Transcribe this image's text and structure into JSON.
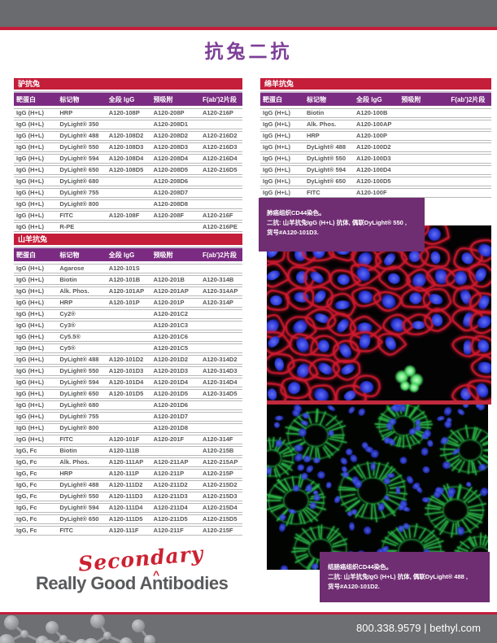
{
  "page_title": "抗兔二抗",
  "tables": [
    {
      "title": "驴抗兔",
      "headers": [
        "靶蛋白",
        "标记物",
        "全段 IgG",
        "预吸附",
        "F(ab')2片段"
      ],
      "rows": [
        [
          "IgG (H+L)",
          "HRP",
          "A120-108P",
          "A120-208P",
          "A120-216P"
        ],
        [
          "IgG (H+L)",
          "DyLight® 350",
          "",
          "A120-208D1",
          ""
        ],
        [
          "IgG (H+L)",
          "DyLight® 488",
          "A120-108D2",
          "A120-208D2",
          "A120-216D2"
        ],
        [
          "IgG (H+L)",
          "DyLight® 550",
          "A120-108D3",
          "A120-208D3",
          "A120-216D3"
        ],
        [
          "IgG (H+L)",
          "DyLight® 594",
          "A120-108D4",
          "A120-208D4",
          "A120-216D4"
        ],
        [
          "IgG (H+L)",
          "DyLight® 650",
          "A120-108D5",
          "A120-208D5",
          "A120-216D5"
        ],
        [
          "IgG (H+L)",
          "DyLight® 680",
          "",
          "A120-208D6",
          ""
        ],
        [
          "IgG (H+L)",
          "DyLight® 755",
          "",
          "A120-208D7",
          ""
        ],
        [
          "IgG (H+L)",
          "DyLight® 800",
          "",
          "A120-208D8",
          ""
        ],
        [
          "IgG (H+L)",
          "FITC",
          "A120-108F",
          "A120-208F",
          "A120-216F"
        ],
        [
          "IgG (H+L)",
          "R-PE",
          "",
          "",
          "A120-216PE"
        ]
      ]
    },
    {
      "title": "山羊抗兔",
      "headers": [
        "靶蛋白",
        "标记物",
        "全段 IgG",
        "预吸附",
        "F(ab')2片段"
      ],
      "rows": [
        [
          "IgG (H+L)",
          "Agarose",
          "A120-101S",
          "",
          ""
        ],
        [
          "IgG (H+L)",
          "Biotin",
          "A120-101B",
          "A120-201B",
          "A120-314B"
        ],
        [
          "IgG (H+L)",
          "Alk. Phos.",
          "A120-101AP",
          "A120-201AP",
          "A120-314AP"
        ],
        [
          "IgG (H+L)",
          "HRP",
          "A120-101P",
          "A120-201P",
          "A120-314P"
        ],
        [
          "IgG (H+L)",
          "Cy2®",
          "",
          "A120-201C2",
          ""
        ],
        [
          "IgG (H+L)",
          "Cy3®",
          "",
          "A120-201C3",
          ""
        ],
        [
          "IgG (H+L)",
          "Cy5.5®",
          "",
          "A120-201C6",
          ""
        ],
        [
          "IgG (H+L)",
          "Cy5®",
          "",
          "A120-201C5",
          ""
        ],
        [
          "IgG (H+L)",
          "DyLight® 488",
          "A120-101D2",
          "A120-201D2",
          "A120-314D2"
        ],
        [
          "IgG (H+L)",
          "DyLight® 550",
          "A120-101D3",
          "A120-201D3",
          "A120-314D3"
        ],
        [
          "IgG (H+L)",
          "DyLight® 594",
          "A120-101D4",
          "A120-201D4",
          "A120-314D4"
        ],
        [
          "IgG (H+L)",
          "DyLight® 650",
          "A120-101D5",
          "A120-201D5",
          "A120-314D5"
        ],
        [
          "IgG (H+L)",
          "DyLight® 680",
          "",
          "A120-201D6",
          ""
        ],
        [
          "IgG (H+L)",
          "DyLight® 755",
          "",
          "A120-201D7",
          ""
        ],
        [
          "IgG (H+L)",
          "DyLight® 800",
          "",
          "A120-201D8",
          ""
        ],
        [
          "IgG (H+L)",
          "FITC",
          "A120-101F",
          "A120-201F",
          "A120-314F"
        ],
        [
          "IgG, Fc",
          "Biotin",
          "A120-111B",
          "",
          "A120-215B"
        ],
        [
          "IgG, Fc",
          "Alk. Phos.",
          "A120-111AP",
          "A120-211AP",
          "A120-215AP"
        ],
        [
          "IgG, Fc",
          "HRP",
          "A120-111P",
          "A120-211P",
          "A120-215P"
        ],
        [
          "IgG, Fc",
          "DyLight® 488",
          "A120-111D2",
          "A120-211D2",
          "A120-215D2"
        ],
        [
          "IgG, Fc",
          "DyLight® 550",
          "A120-111D3",
          "A120-211D3",
          "A120-215D3"
        ],
        [
          "IgG, Fc",
          "DyLight® 594",
          "A120-111D4",
          "A120-211D4",
          "A120-215D4"
        ],
        [
          "IgG, Fc",
          "DyLight® 650",
          "A120-111D5",
          "A120-211D5",
          "A120-215D5"
        ],
        [
          "IgG, Fc",
          "FITC",
          "A120-111F",
          "A120-211F",
          "A120-215F"
        ]
      ]
    },
    {
      "title": "绵羊抗兔",
      "headers": [
        "靶蛋白",
        "标记物",
        "全段 IgG",
        "预吸附",
        "F(ab')2片段"
      ],
      "rows": [
        [
          "IgG (H+L)",
          "Biotin",
          "A120-100B",
          "",
          ""
        ],
        [
          "IgG (H+L)",
          "Alk. Phos.",
          "A120-100AP",
          "",
          ""
        ],
        [
          "IgG (H+L)",
          "HRP",
          "A120-100P",
          "",
          ""
        ],
        [
          "IgG (H+L)",
          "DyLight® 488",
          "A120-100D2",
          "",
          ""
        ],
        [
          "IgG (H+L)",
          "DyLight® 550",
          "A120-100D3",
          "",
          ""
        ],
        [
          "IgG (H+L)",
          "DyLight® 594",
          "A120-100D4",
          "",
          ""
        ],
        [
          "IgG (H+L)",
          "DyLight® 650",
          "A120-100D5",
          "",
          ""
        ],
        [
          "IgG (H+L)",
          "FITC",
          "A120-100F",
          "",
          ""
        ]
      ]
    }
  ],
  "figures": [
    {
      "caption_lines": [
        "肺癌组织CD44染色。",
        "二抗: 山羊抗兔IgG (H+L) 抗体, 偶联DyLight® 550 ,",
        "货号#A120-101D3."
      ],
      "palette": {
        "membrane": "#d01a30",
        "nuclei": "#2a35d8",
        "highlight": "#67e67d"
      }
    },
    {
      "caption_lines": [
        "结肠癌组织CD44染色。",
        "二抗: 山羊抗兔IgG (H+L) 抗体, 偶联DyLight® 488 ,",
        "货号#A120-101D2."
      ],
      "palette": {
        "membrane": "#2ec04e",
        "nuclei": "#2a35d8"
      }
    }
  ],
  "logo": {
    "main_text": "Really Good Antibodies",
    "insert_word": "Secondary",
    "caret": "^"
  },
  "footer": {
    "text": "800.338.9579 | bethyl.com"
  },
  "colors": {
    "accent_red": "#c41e3a",
    "header_purple": "#7b2c82",
    "caption_purple": "#6f2d72",
    "title_purple": "#7d3e97",
    "bar_gray": "#6a6b6f",
    "table_text_gray": "#57585a",
    "logo_red": "#cc2132"
  }
}
